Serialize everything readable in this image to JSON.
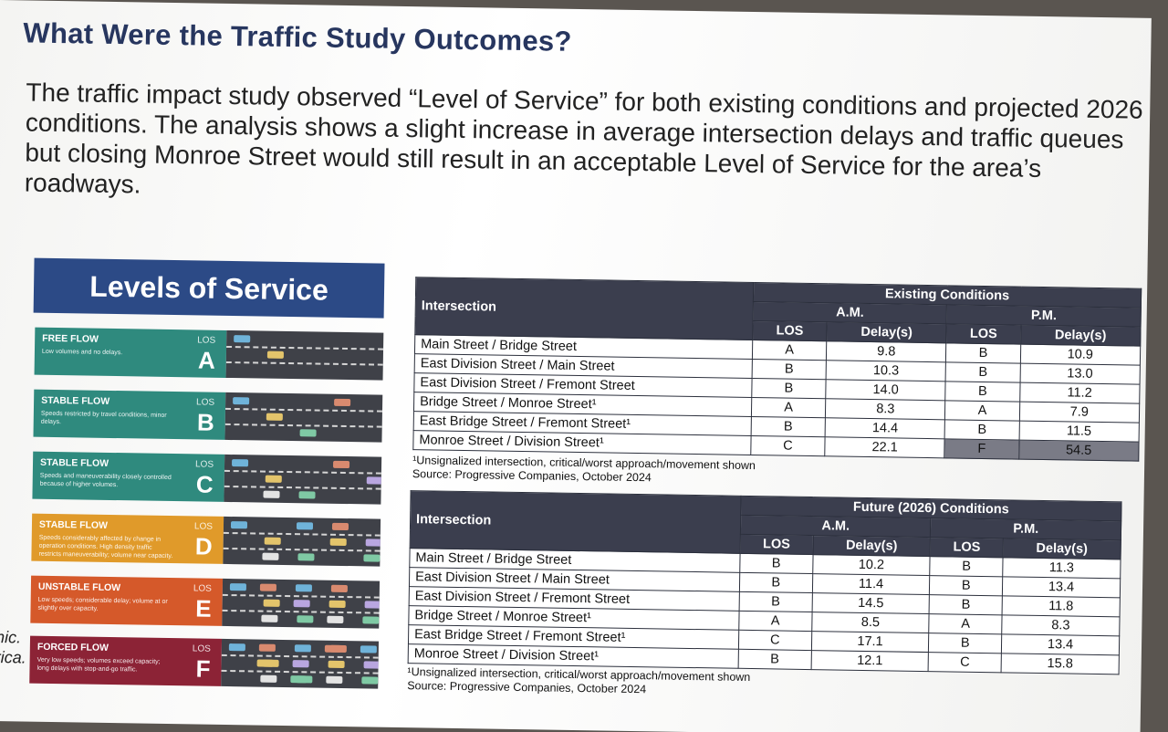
{
  "heading": "What Were the Traffic Study Outcomes?",
  "intro": "The traffic impact study observed “Level of Service” for both existing conditions and projected 2026 conditions. The analysis shows a slight increase in average intersection delays and traffic queues but closing Monroe Street would still result in an acceptable Level of Service for the area’s roadways.",
  "los_panel": {
    "title": "Levels of Service",
    "tag": "LOS",
    "levels": [
      {
        "flow": "FREE FLOW",
        "desc": "Low volumes and no delays.",
        "grade": "A",
        "color": "#2f8a7e"
      },
      {
        "flow": "STABLE FLOW",
        "desc": "Speeds restricted by travel conditions, minor delays.",
        "grade": "B",
        "color": "#2f8a7e"
      },
      {
        "flow": "STABLE FLOW",
        "desc": "Speeds and maneuverability closely controlled because of higher volumes.",
        "grade": "C",
        "color": "#2f8a7e"
      },
      {
        "flow": "STABLE FLOW",
        "desc": "Speeds considerably affected by change in operation conditions. High density traffic restricts maneuverability; volume near capacity.",
        "grade": "D",
        "color": "#e09a2a"
      },
      {
        "flow": "UNSTABLE FLOW",
        "desc": "Low speeds; considerable delay; volume at or slightly over capacity.",
        "grade": "E",
        "color": "#d5592a"
      },
      {
        "flow": "FORCED FLOW",
        "desc": "Very low speeds; volumes exceed capacity; long delays with stop-and-go traffic.",
        "grade": "F",
        "color": "#8c2336"
      }
    ]
  },
  "side_text": [
    "phic.",
    "erica."
  ],
  "existing": {
    "title": "Existing Conditions",
    "col_intersection": "Intersection",
    "am": "A.M.",
    "pm": "P.M.",
    "los": "LOS",
    "delay": "Delay(s)",
    "rows": [
      {
        "name": "Main Street / Bridge Street",
        "am_los": "A",
        "am_delay": "9.8",
        "pm_los": "B",
        "pm_delay": "10.9"
      },
      {
        "name": "East Division Street / Main Street",
        "am_los": "B",
        "am_delay": "10.3",
        "pm_los": "B",
        "pm_delay": "13.0"
      },
      {
        "name": "East Division Street / Fremont Street",
        "am_los": "B",
        "am_delay": "14.0",
        "pm_los": "B",
        "pm_delay": "11.2"
      },
      {
        "name": "Bridge Street / Monroe Street¹",
        "am_los": "A",
        "am_delay": "8.3",
        "pm_los": "A",
        "pm_delay": "7.9"
      },
      {
        "name": "East Bridge Street / Fremont Street¹",
        "am_los": "B",
        "am_delay": "14.4",
        "pm_los": "B",
        "pm_delay": "11.5"
      },
      {
        "name": "Monroe Street / Division Street¹",
        "am_los": "C",
        "am_delay": "22.1",
        "pm_los": "F",
        "pm_delay": "54.5"
      }
    ],
    "footnote": "¹Unsignalized intersection, critical/worst approach/movement shown",
    "source": "Source: Progressive Companies, October 2024"
  },
  "future": {
    "title": "Future (2026) Conditions",
    "col_intersection": "Intersection",
    "am": "A.M.",
    "pm": "P.M.",
    "los": "LOS",
    "delay": "Delay(s)",
    "rows": [
      {
        "name": "Main Street / Bridge Street",
        "am_los": "B",
        "am_delay": "10.2",
        "pm_los": "B",
        "pm_delay": "11.3"
      },
      {
        "name": "East Division Street / Main Street",
        "am_los": "B",
        "am_delay": "11.4",
        "pm_los": "B",
        "pm_delay": "13.4"
      },
      {
        "name": "East Division Street / Fremont Street",
        "am_los": "B",
        "am_delay": "14.5",
        "pm_los": "B",
        "pm_delay": "11.8"
      },
      {
        "name": "Bridge Street / Monroe Street¹",
        "am_los": "A",
        "am_delay": "8.5",
        "pm_los": "A",
        "pm_delay": "8.3"
      },
      {
        "name": "East Bridge Street / Fremont Street¹",
        "am_los": "C",
        "am_delay": "17.1",
        "pm_los": "B",
        "pm_delay": "13.4"
      },
      {
        "name": "Monroe Street / Division Street¹",
        "am_los": "B",
        "am_delay": "12.1",
        "pm_los": "C",
        "pm_delay": "15.8"
      }
    ],
    "footnote": "¹Unsignalized intersection, critical/worst approach/movement shown",
    "source": "Source: Progressive Companies, October 2024"
  }
}
